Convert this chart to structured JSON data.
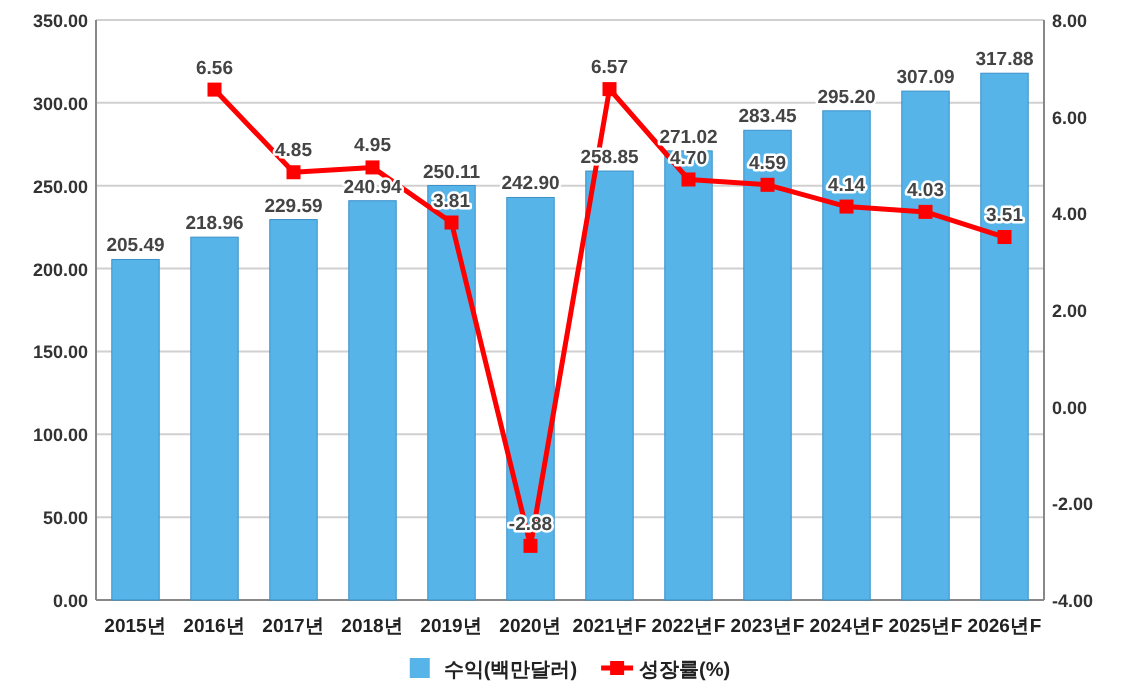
{
  "chart_data": {
    "type": "bar",
    "categories": [
      "2015년",
      "2016년",
      "2017년",
      "2018년",
      "2019년",
      "2020년",
      "2021년F",
      "2022년F",
      "2023년F",
      "2024년F",
      "2025년F",
      "2026년F"
    ],
    "series": [
      {
        "name": "수익(백만달러)",
        "color": "#56b4e9",
        "values": [
          205.49,
          218.96,
          229.59,
          240.94,
          250.11,
          242.9,
          258.85,
          271.02,
          283.45,
          295.2,
          307.09,
          317.88
        ],
        "value_labels": [
          "205.49",
          "218.96",
          "229.59",
          "240.94",
          "250.11",
          "242.90",
          "258.85",
          "271.02",
          "283.45",
          "295.20",
          "307.09",
          "317.88"
        ]
      },
      {
        "name": "성장률(%)",
        "type": "line",
        "axis": "y2",
        "color": "#ff0000",
        "marker": "square",
        "values": [
          null,
          6.56,
          4.85,
          4.95,
          3.81,
          -2.88,
          6.57,
          4.7,
          4.59,
          4.14,
          4.03,
          3.51
        ],
        "value_labels": [
          null,
          "6.56",
          "4.85",
          "4.95",
          "3.81",
          "-2.88",
          "6.57",
          "4.70",
          "4.59",
          "4.14",
          "4.03",
          "3.51"
        ]
      }
    ],
    "ylim": [
      0,
      350
    ],
    "yticks": [
      {
        "value": 0,
        "label": "0.00"
      },
      {
        "value": 50,
        "label": "50.00"
      },
      {
        "value": 100,
        "label": "100.00"
      },
      {
        "value": 150,
        "label": "150.00"
      },
      {
        "value": 200,
        "label": "200.00"
      },
      {
        "value": 250,
        "label": "250.00"
      },
      {
        "value": 300,
        "label": "300.00"
      },
      {
        "value": 350,
        "label": "350.00"
      }
    ],
    "y2lim": [
      -4,
      8
    ],
    "y2ticks": [
      {
        "value": -4,
        "label": "-4.00"
      },
      {
        "value": -2,
        "label": "-2.00"
      },
      {
        "value": 0,
        "label": "0.00"
      },
      {
        "value": 2,
        "label": "2.00"
      },
      {
        "value": 4,
        "label": "4.00"
      },
      {
        "value": 6,
        "label": "6.00"
      },
      {
        "value": 8,
        "label": "8.00"
      }
    ],
    "grid": "y",
    "legend": "bottom"
  }
}
